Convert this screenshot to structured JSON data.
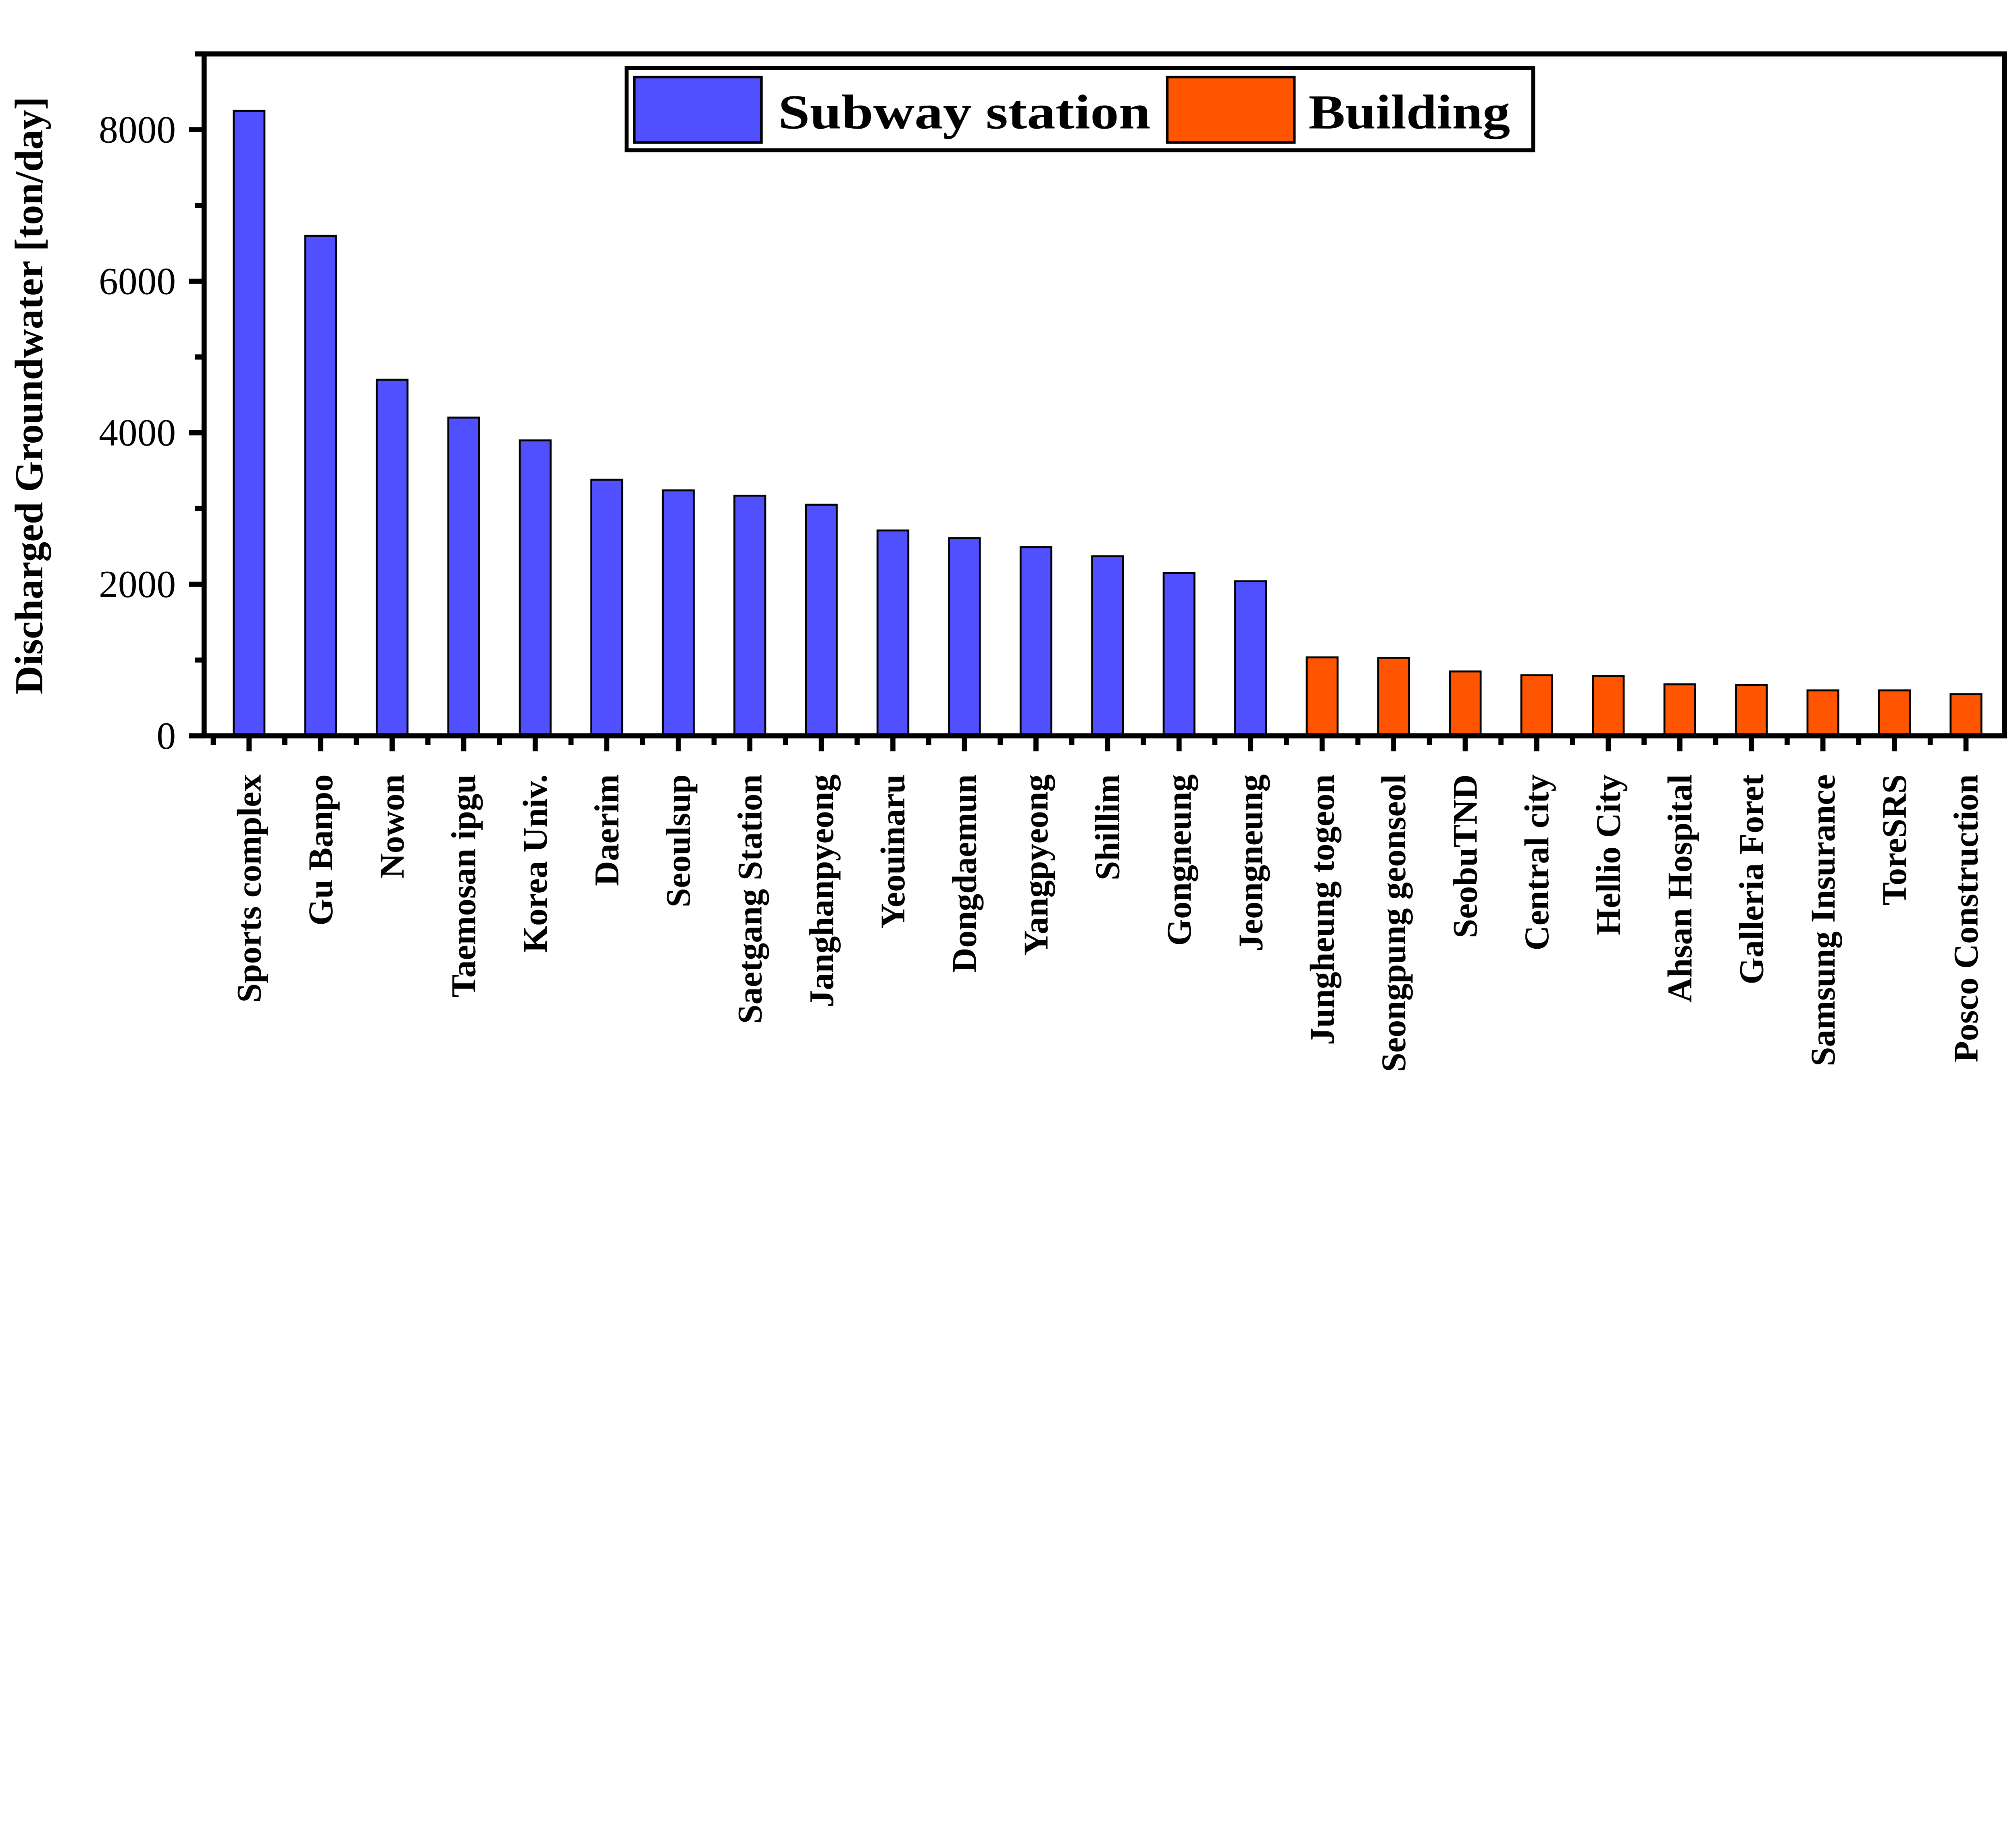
{
  "chart_data": {
    "type": "bar",
    "title": "",
    "xlabel": "",
    "ylabel": "Discharged Groundwater [ton/day]",
    "ylim": [
      0,
      9000
    ],
    "yticks": [
      0,
      2000,
      4000,
      6000,
      8000
    ],
    "yticks_minor": [
      1000,
      3000,
      5000,
      7000,
      9000
    ],
    "grid": false,
    "legend_position": "top-center",
    "categories": [
      "Sports complex",
      "Gu Banpo",
      "Nowon",
      "Taemosan ipgu",
      "Korea Univ.",
      "Daerim",
      "Seoulsup",
      "Saetgang Station",
      "Janghanpyeong",
      "Yeouinaru",
      "Dongdaemun",
      "Yangpyeong",
      "Shillim",
      "Gongneung",
      "Jeongneung",
      "Jungheung togeon",
      "Seongpung geonseol",
      "SeobuTND",
      "Central city",
      "Hellio City",
      "Ahsan Hospital",
      "Galleria Foret",
      "Samsung Insurance",
      "ToreSRS",
      "Posco Construction"
    ],
    "values": [
      8250,
      6600,
      4700,
      4200,
      3900,
      3380,
      3240,
      3170,
      3050,
      2710,
      2610,
      2490,
      2370,
      2150,
      2040,
      1035,
      1030,
      850,
      800,
      790,
      680,
      670,
      600,
      600,
      550
    ],
    "groups": [
      "Subway station",
      "Subway station",
      "Subway station",
      "Subway station",
      "Subway station",
      "Subway station",
      "Subway station",
      "Subway station",
      "Subway station",
      "Subway station",
      "Subway station",
      "Subway station",
      "Subway station",
      "Subway station",
      "Subway station",
      "Building",
      "Building",
      "Building",
      "Building",
      "Building",
      "Building",
      "Building",
      "Building",
      "Building",
      "Building"
    ],
    "series": [
      {
        "name": "Subway station",
        "color": "#5050ff"
      },
      {
        "name": "Building",
        "color": "#ff5500"
      }
    ]
  }
}
